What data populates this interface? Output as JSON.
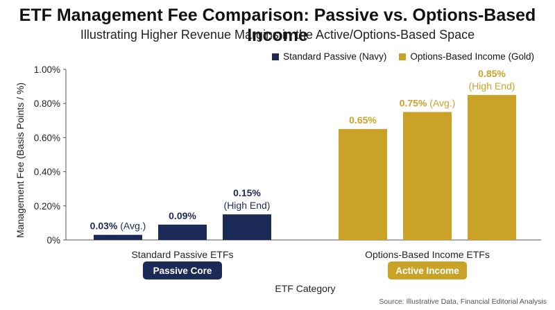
{
  "chart_data": {
    "type": "bar",
    "title": "ETF Management Fee Comparison: Passive vs. Options-Based Income",
    "subtitle": "Illustrating Higher Revenue Margins in the Active/Options-Based Space",
    "ylabel": "Management Fee (Basis Points / %)",
    "xlabel": "ETF Category",
    "ylim": [
      0,
      1.0
    ],
    "yticks": [
      "0%",
      "0.20%",
      "0.40%",
      "0.60%",
      "0.80%",
      "1.00%"
    ],
    "ytick_values": [
      0,
      0.2,
      0.4,
      0.6,
      0.8,
      1.0
    ],
    "grid": false,
    "legend_position": "top-right",
    "groups": [
      {
        "name": "Standard Passive ETFs",
        "badge": "Passive Core",
        "color": "#1b2a57",
        "bars": [
          {
            "value": 0.03,
            "label": "0.03%",
            "note": "(Avg.)"
          },
          {
            "value": 0.09,
            "label": "0.09%",
            "note": ""
          },
          {
            "value": 0.15,
            "label": "0.15%",
            "note": "(High End)"
          }
        ]
      },
      {
        "name": "Options-Based Income ETFs",
        "badge": "Active Income",
        "color": "#c9a227",
        "bars": [
          {
            "value": 0.65,
            "label": "0.65%",
            "note": ""
          },
          {
            "value": 0.75,
            "label": "0.75%",
            "note": "(Avg.)"
          },
          {
            "value": 0.85,
            "label": "0.85%",
            "note": "(High End)"
          }
        ]
      }
    ],
    "legend": [
      {
        "name": "Standard Passive (Navy)",
        "color": "#1b2a57"
      },
      {
        "name": "Options-Based Income (Gold)",
        "color": "#c9a227"
      }
    ]
  },
  "source": "Source: Illustrative Data, Financial Editorial Analysis"
}
